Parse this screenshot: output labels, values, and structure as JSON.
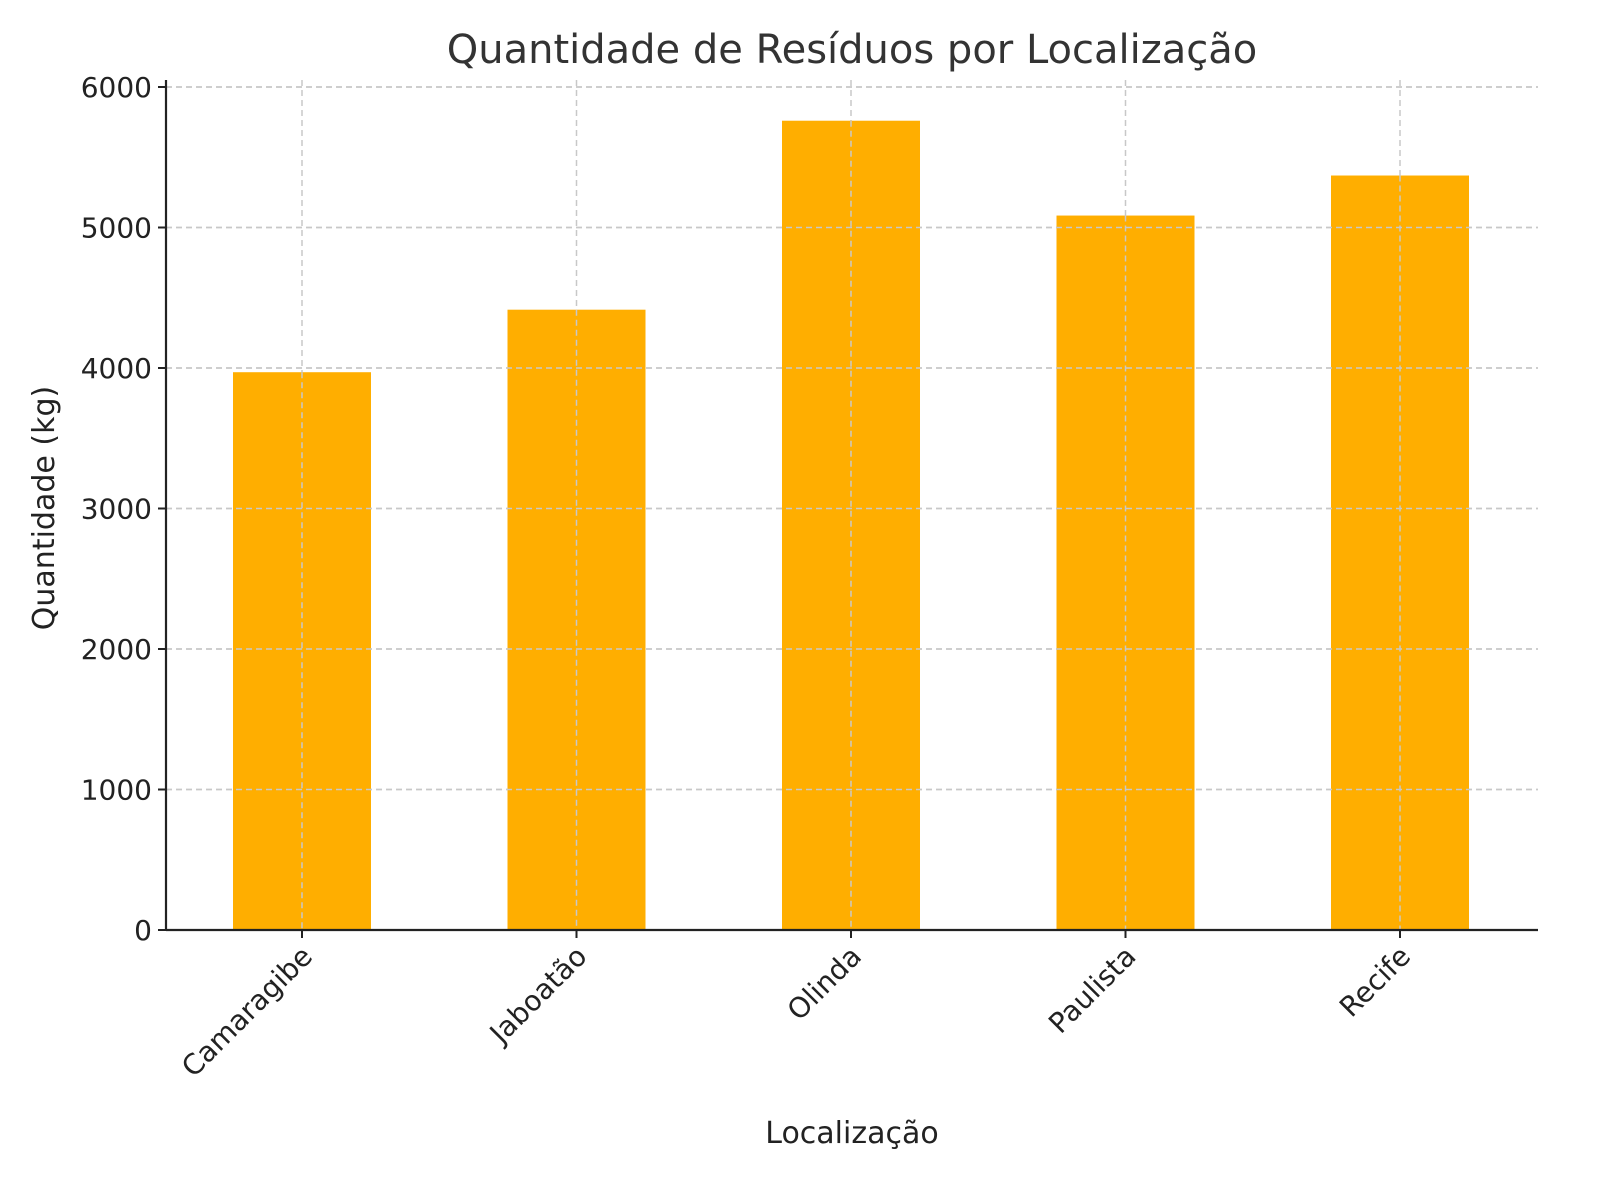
{
  "chart_data": {
    "type": "bar",
    "title": "Quantidade de Resíduos por Localização",
    "xlabel": "Localização",
    "ylabel": "Quantidade (kg)",
    "categories": [
      "Camaragibe",
      "Jaboatão",
      "Olinda",
      "Paulista",
      "Recife"
    ],
    "values": [
      3970,
      4415,
      5760,
      5085,
      5370
    ],
    "ylim": [
      0,
      6000
    ],
    "yticks": [
      0,
      1000,
      2000,
      3000,
      4000,
      5000,
      6000
    ],
    "grid": true,
    "bar_color": "#FFAE00",
    "legend": "none"
  }
}
